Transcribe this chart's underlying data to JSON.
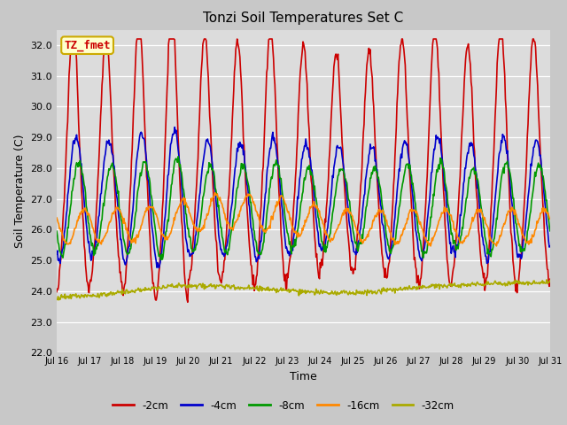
{
  "title": "Tonzi Soil Temperatures Set C",
  "xlabel": "Time",
  "ylabel": "Soil Temperature (C)",
  "ylim": [
    22.0,
    32.5
  ],
  "yticks": [
    22.0,
    23.0,
    24.0,
    25.0,
    26.0,
    27.0,
    28.0,
    29.0,
    30.0,
    31.0,
    32.0
  ],
  "fig_bg": "#c8c8c8",
  "plot_bg": "#dcdcdc",
  "legend_label": "TZ_fmet",
  "legend_bg": "#ffffcc",
  "legend_border": "#ccaa00",
  "series_labels": [
    "-2cm",
    "-4cm",
    "-8cm",
    "-16cm",
    "-32cm"
  ],
  "series_colors": [
    "#cc0000",
    "#0000cc",
    "#009900",
    "#ff8800",
    "#aaaa00"
  ],
  "series_linewidths": [
    1.2,
    1.2,
    1.2,
    1.2,
    1.2
  ],
  "xtick_labels": [
    "Jul 16",
    "Jul 17",
    "Jul 18",
    "Jul 19",
    "Jul 20",
    "Jul 21",
    "Jul 22",
    "Jul 23",
    "Jul 24",
    "Jul 25",
    "Jul 26",
    "Jul 27",
    "Jul 28",
    "Jul 29",
    "Jul 30",
    "Jul 31"
  ]
}
